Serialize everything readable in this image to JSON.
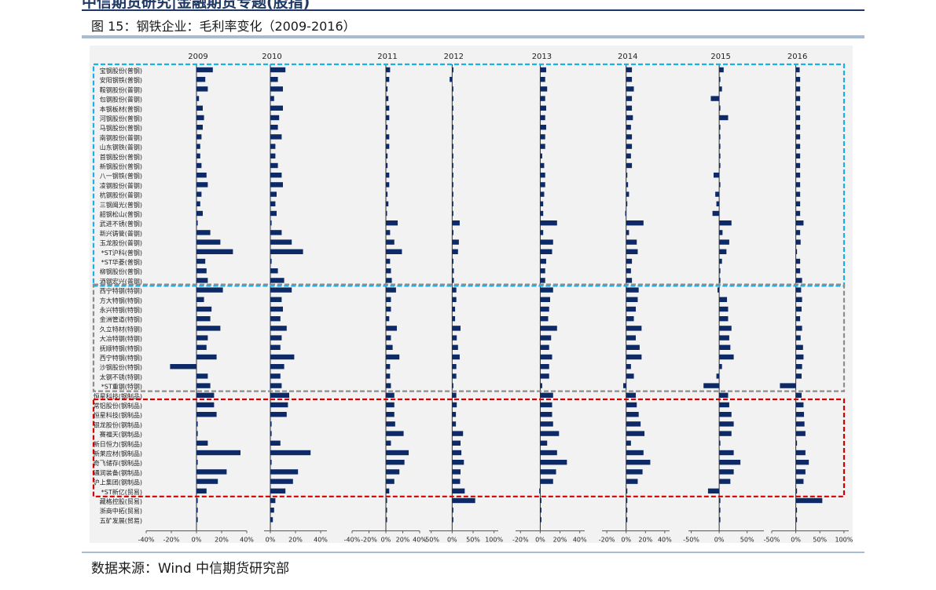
{
  "page": {
    "header": "中信期货研究|金融期货专题(股指)",
    "figure_title": "图 15：钢铁企业：毛利率变化（2009-2016）",
    "source": "数据来源：Wind  中信期货研究部"
  },
  "colors": {
    "bar": "#0d2a66",
    "panel_bg": "#f2f2f2",
    "group1_border": "#1ab0e8",
    "group2_border": "#8c8c8c",
    "group3_border": "#d40000",
    "rule": "#a9bcd6"
  },
  "chart_data": {
    "type": "bar",
    "orientation": "horizontal",
    "unit": "%",
    "grid": false,
    "categories": [
      "宝钢股份(普钢)",
      "安阳钢铁(普钢)",
      "鞍钢股份(普钢)",
      "包钢股份(普钢)",
      "本钢板材(普钢)",
      "河钢股份(普钢)",
      "马钢股份(普钢)",
      "南钢股份(普钢)",
      "山东钢铁(普钢)",
      "首钢股份(普钢)",
      "新钢股份(普钢)",
      "八一钢铁(普钢)",
      "凌钢股份(普钢)",
      "杭钢股份(普钢)",
      "三钢闽光(普钢)",
      "韶钢松山(普钢)",
      "武进不锈(普钢)",
      "新兴铸管(普钢)",
      "玉龙股份(普钢)",
      "*ST沪科(普钢)",
      "*ST华菱(普钢)",
      "柳钢股份(普钢)",
      "酒钢宏兴(普钢)",
      "西宁特钢(特钢)",
      "方大特钢(特钢)",
      "永兴特钢(特钢)",
      "金洲管道(特钢)",
      "久立特材(特钢)",
      "大冶特钢(特钢)",
      "抚顺特钢(特钢)",
      "西宁特钢(特钢)",
      "沙钢股份(特钢)",
      "太钢不锈(特钢)",
      "*ST重钢(特钢)",
      "恒星科技(钢制品)",
      "常铝股份(钢制品)",
      "恒星科技(钢制品)",
      "银龙股份(钢制品)",
      "赛福天(钢制品)",
      "新日恒力(钢制品)",
      "新莱应材(钢制品)",
      "奇飞储存(钢制品)",
      "通润装备(钢制品)",
      "沪上集团(钢制品)",
      "*ST新亿(贸易)",
      "藏格控股(贸易)",
      "浙商中拓(贸易)",
      "五矿发展(贸易)"
    ],
    "years": [
      {
        "year": "2009",
        "ticks": [
          "-40%",
          "-20%",
          "0%",
          "20%",
          "40%"
        ],
        "xlim": [
          -40,
          40
        ],
        "values": [
          13,
          7,
          9,
          2,
          5,
          6,
          5,
          4,
          3,
          3,
          4,
          8,
          9,
          4,
          3,
          5,
          1,
          11,
          19,
          29,
          7,
          8,
          9,
          21,
          6,
          12,
          11,
          19,
          9,
          8,
          16,
          -21,
          9,
          11,
          14,
          14,
          16,
          1,
          1,
          9,
          35,
          1,
          24,
          17,
          8,
          1,
          1,
          1
        ]
      },
      {
        "year": "2010",
        "ticks": [
          "0%",
          "20%",
          "40%"
        ],
        "xlim": [
          -5,
          45
        ],
        "values": [
          12,
          6,
          10,
          3,
          10,
          7,
          6,
          9,
          4,
          4,
          6,
          9,
          10,
          5,
          4,
          5,
          1,
          9,
          17,
          26,
          1,
          6,
          11,
          17,
          9,
          10,
          8,
          13,
          9,
          8,
          19,
          11,
          8,
          9,
          15,
          14,
          13,
          1,
          1,
          8,
          32,
          1,
          22,
          18,
          12,
          4,
          3,
          2
        ]
      },
      {
        "year": "2011",
        "ticks": [
          "-40%",
          "-20%",
          "0%",
          "20%",
          "40%"
        ],
        "xlim": [
          -40,
          40
        ],
        "values": [
          5,
          4,
          2,
          3,
          4,
          4,
          2,
          4,
          4,
          2,
          2,
          4,
          4,
          2,
          3,
          1,
          14,
          5,
          10,
          19,
          5,
          6,
          7,
          12,
          6,
          6,
          4,
          13,
          6,
          8,
          16,
          5,
          5,
          6,
          10,
          10,
          10,
          11,
          21,
          6,
          27,
          22,
          16,
          10,
          4,
          1,
          1,
          1
        ]
      },
      {
        "year": "2012",
        "ticks": [
          "-50%",
          "0%",
          "50%",
          "100%"
        ],
        "xlim": [
          -55,
          110
        ],
        "values": [
          3,
          -6,
          2,
          1,
          1,
          1,
          1,
          1,
          1,
          1,
          1,
          1,
          1,
          1,
          1,
          1,
          18,
          3,
          16,
          14,
          3,
          4,
          4,
          10,
          10,
          7,
          7,
          20,
          11,
          14,
          18,
          10,
          10,
          2,
          10,
          11,
          9,
          9,
          26,
          20,
          22,
          28,
          20,
          19,
          30,
          55,
          1,
          1
        ]
      },
      {
        "year": "2013",
        "ticks": [
          "-20%",
          "0%",
          "20%",
          "40%"
        ],
        "xlim": [
          -25,
          45
        ],
        "values": [
          6,
          5,
          7,
          5,
          6,
          5,
          6,
          5,
          5,
          2,
          4,
          5,
          5,
          4,
          3,
          3,
          17,
          3,
          13,
          12,
          6,
          5,
          5,
          13,
          10,
          9,
          8,
          17,
          11,
          9,
          12,
          9,
          9,
          2,
          13,
          12,
          12,
          13,
          19,
          7,
          17,
          27,
          16,
          13,
          -1,
          1,
          1,
          1
        ]
      },
      {
        "year": "2014",
        "ticks": [
          "-20%",
          "0%",
          "20%",
          "40%"
        ],
        "xlim": [
          -25,
          45
        ],
        "values": [
          6,
          6,
          8,
          6,
          6,
          7,
          5,
          6,
          6,
          5,
          6,
          1,
          2,
          3,
          1,
          -1,
          18,
          3,
          11,
          12,
          6,
          5,
          6,
          13,
          12,
          10,
          8,
          16,
          10,
          14,
          16,
          5,
          8,
          -3,
          10,
          11,
          13,
          15,
          19,
          5,
          18,
          25,
          17,
          12,
          1,
          1,
          1,
          1
        ]
      },
      {
        "year": "2015",
        "ticks": [
          "-50%",
          "0%",
          "50%"
        ],
        "xlim": [
          -55,
          80
        ],
        "values": [
          8,
          1,
          5,
          -15,
          1,
          16,
          1,
          1,
          1,
          1,
          1,
          -10,
          1,
          -7,
          -5,
          -12,
          22,
          6,
          18,
          13,
          5,
          1,
          1,
          -3,
          14,
          16,
          16,
          22,
          18,
          20,
          26,
          5,
          -5,
          -28,
          16,
          18,
          22,
          26,
          22,
          2,
          26,
          38,
          26,
          20,
          -20,
          1,
          1,
          1
        ]
      },
      {
        "year": "2016",
        "ticks": [
          "-50%",
          "0%",
          "50%",
          "100%"
        ],
        "xlim": [
          -50,
          110
        ],
        "values": [
          8,
          9,
          9,
          9,
          9,
          9,
          9,
          9,
          9,
          9,
          9,
          9,
          9,
          9,
          9,
          9,
          16,
          9,
          10,
          2,
          9,
          9,
          13,
          11,
          13,
          12,
          9,
          13,
          10,
          15,
          16,
          13,
          12,
          -33,
          12,
          16,
          17,
          18,
          20,
          2,
          20,
          27,
          20,
          16,
          1,
          55,
          1,
          1
        ]
      }
    ]
  }
}
